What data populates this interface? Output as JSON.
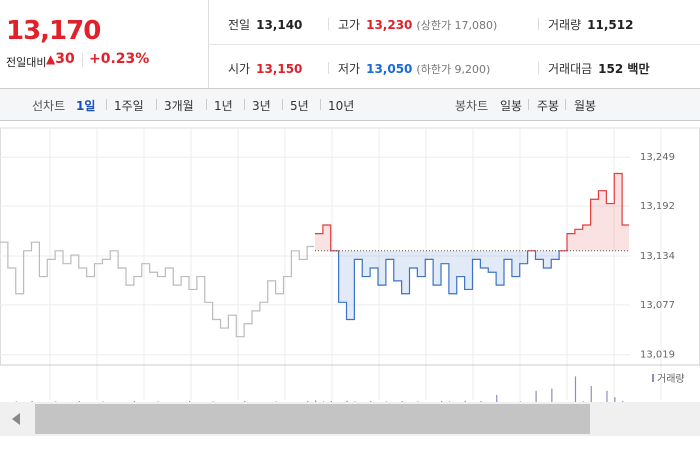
{
  "quote": {
    "price": "13,170",
    "change_label": "전일대비",
    "change": "30",
    "change_pct": "+0.23%"
  },
  "stats": [
    {
      "label": "전일",
      "value": "13,140"
    },
    {
      "label": "고가",
      "value": "13,230",
      "note": "(상한가 17,080)"
    },
    {
      "label": "거래량",
      "value": "11,512"
    },
    {
      "label": "시가",
      "value": "13,150"
    },
    {
      "label": "저가",
      "value": "13,050",
      "note": "(하한가 9,200)"
    },
    {
      "label": "거래대금",
      "value": "152 백만"
    }
  ],
  "toolbar": {
    "line_label": "선차트",
    "ranges": [
      "1일",
      "1주일",
      "3개월",
      "1년",
      "3년",
      "5년",
      "10년"
    ],
    "candle_label": "봉차트",
    "candles": [
      "일봉",
      "주봉",
      "월봉"
    ]
  },
  "chart_data": {
    "type": "line",
    "x": [
      0,
      1,
      2,
      3,
      4,
      5,
      6,
      7,
      8,
      9,
      10,
      11,
      12,
      13,
      14,
      15,
      16,
      17,
      18,
      19,
      20,
      21,
      22,
      23,
      24,
      25,
      26,
      27,
      28,
      29,
      30,
      31,
      32,
      33,
      34,
      35,
      36,
      37,
      38,
      39,
      40,
      41,
      42,
      43,
      44,
      45,
      46,
      47,
      48,
      49,
      50,
      51,
      52,
      53,
      54,
      55,
      56,
      57,
      58,
      59,
      60,
      61,
      62,
      63,
      64,
      65,
      66,
      67,
      68,
      69,
      70,
      71,
      72,
      73,
      74,
      75,
      76,
      77,
      78,
      79
    ],
    "xlim": [
      0,
      80
    ],
    "series": [
      {
        "color": "#bbbbbb",
        "values": [
          13150,
          13120,
          13090,
          13140,
          13150,
          13110,
          13130,
          13140,
          13125,
          13135,
          13120,
          13110,
          13125,
          13130,
          13140,
          13120,
          13100,
          13110,
          13125,
          13115,
          13110,
          13120,
          13100,
          13110,
          13095,
          13110,
          13080,
          13060,
          13050,
          13065,
          13040,
          13055,
          13070,
          13080,
          13105,
          13090,
          13110,
          13140,
          13130,
          13145,
          null,
          null,
          null,
          null,
          null,
          null,
          null,
          null,
          null,
          null,
          null,
          null,
          null,
          null,
          null,
          null,
          null,
          null,
          null,
          null,
          null,
          null,
          null,
          null,
          null,
          null,
          null,
          null,
          null,
          null,
          null,
          null,
          null,
          null,
          null,
          null,
          null,
          null,
          null,
          null
        ]
      },
      {
        "color": "#e03c3c",
        "color_down": "#3b73c8",
        "values": [
          null,
          null,
          null,
          null,
          null,
          null,
          null,
          null,
          null,
          null,
          null,
          null,
          null,
          null,
          null,
          null,
          null,
          null,
          null,
          null,
          null,
          null,
          null,
          null,
          null,
          null,
          null,
          null,
          null,
          null,
          null,
          null,
          null,
          null,
          null,
          null,
          null,
          null,
          null,
          null,
          13160,
          13170,
          13140,
          13080,
          13060,
          13130,
          13110,
          13120,
          13100,
          13130,
          13105,
          13090,
          13120,
          13110,
          13130,
          13100,
          13125,
          13090,
          13110,
          13095,
          13130,
          13120,
          13115,
          13100,
          13130,
          13110,
          13125,
          13140,
          13130,
          13120,
          13130,
          13140,
          13160,
          13165,
          13170,
          13200,
          13210,
          13195,
          13230,
          13170
        ]
      }
    ],
    "baseline": 13140,
    "ylim": [
      13007,
      13283
    ],
    "yticks": [
      {
        "value": 13019,
        "label": "13,019"
      },
      {
        "value": 13077,
        "label": "13,077"
      },
      {
        "value": 13134,
        "label": "13,134"
      },
      {
        "value": 13192,
        "label": "13,192"
      },
      {
        "value": 13249,
        "label": "13,249"
      }
    ],
    "volume": {
      "name": "거래량",
      "color": "#9b86c4",
      "vlim": [
        0,
        100
      ],
      "values": [
        0,
        0,
        2,
        0,
        3,
        0,
        0,
        2,
        0,
        0,
        3,
        0,
        0,
        2,
        0,
        0,
        0,
        3,
        0,
        0,
        2,
        0,
        0,
        0,
        3,
        0,
        0,
        2,
        0,
        0,
        0,
        3,
        0,
        0,
        0,
        2,
        0,
        0,
        0,
        3,
        5,
        2,
        3,
        0,
        4,
        2,
        0,
        3,
        0,
        2,
        0,
        3,
        0,
        2,
        0,
        0,
        3,
        2,
        0,
        4,
        0,
        3,
        0,
        22,
        0,
        0,
        2,
        0,
        35,
        0,
        42,
        0,
        0,
        80,
        2,
        50,
        0,
        35,
        15,
        3
      ]
    }
  }
}
